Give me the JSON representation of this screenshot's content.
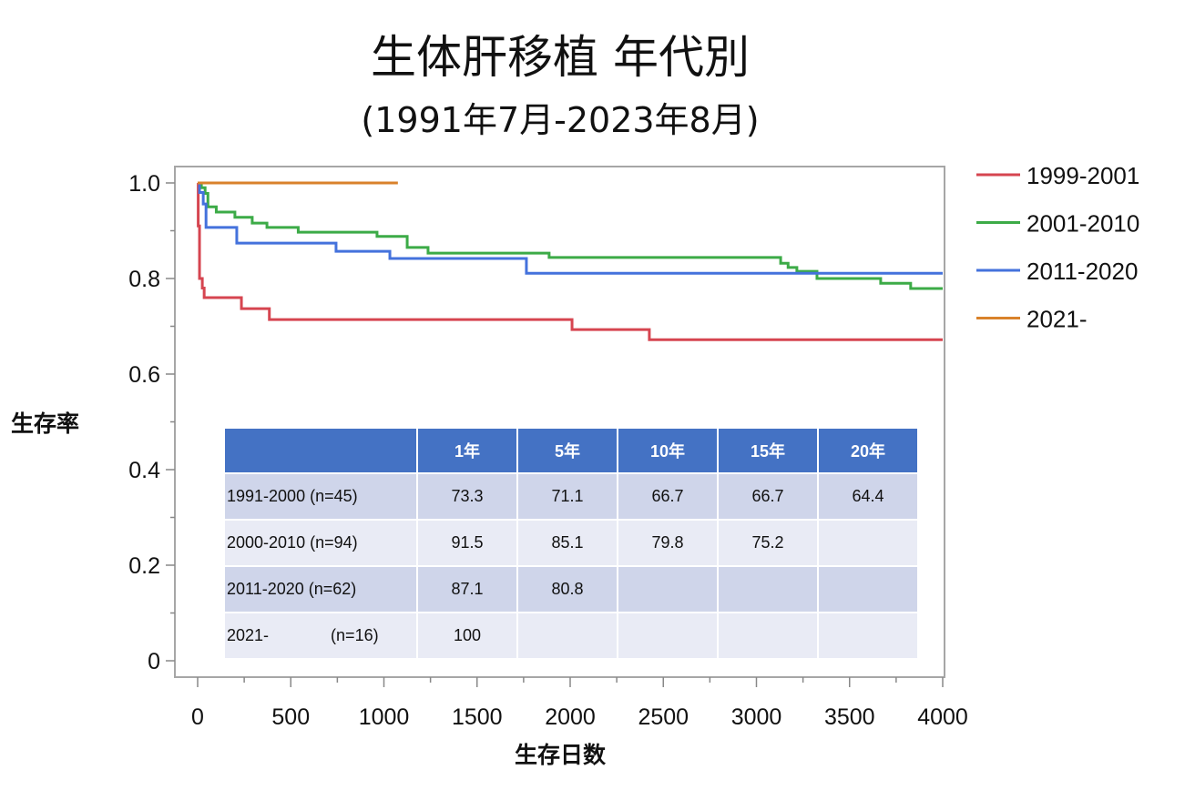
{
  "chart_data": {
    "type": "line",
    "subtype": "kaplan-meier-step",
    "title": "生体肝移植 年代別",
    "subtitle": "(1991年7月-2023年8月)",
    "xlabel": "生存日数",
    "ylabel": "生存率",
    "xlim": [
      0,
      4000
    ],
    "ylim": [
      0,
      1.0
    ],
    "xticks": [
      "0",
      "500",
      "1000",
      "1500",
      "2000",
      "2500",
      "3000",
      "3500",
      "4000"
    ],
    "xtick_values": [
      0,
      500,
      1000,
      1500,
      2000,
      2500,
      3000,
      3500,
      4000
    ],
    "yticks": [
      "0",
      "0.2",
      "0.4",
      "0.6",
      "0.8",
      "1.0"
    ],
    "ytick_values": [
      0,
      0.2,
      0.4,
      0.6,
      0.8,
      1.0
    ],
    "grid": false,
    "legend_position": "right",
    "series": [
      {
        "name": "1999-2001",
        "color": "#d64550",
        "x": [
          0,
          3,
          10,
          25,
          35,
          235,
          385,
          2010,
          2425,
          4000
        ],
        "y": [
          1.0,
          0.91,
          0.8,
          0.78,
          0.76,
          0.737,
          0.714,
          0.693,
          0.672,
          0.672
        ]
      },
      {
        "name": "2001-2010",
        "color": "#3cab47",
        "x": [
          0,
          20,
          40,
          55,
          100,
          200,
          293,
          372,
          540,
          963,
          1125,
          1237,
          1887,
          3130,
          3170,
          3217,
          3325,
          3667,
          3828,
          4000
        ],
        "y": [
          1.0,
          0.99,
          0.978,
          0.95,
          0.939,
          0.928,
          0.916,
          0.907,
          0.897,
          0.888,
          0.865,
          0.853,
          0.844,
          0.832,
          0.823,
          0.815,
          0.8,
          0.79,
          0.779,
          0.779
        ]
      },
      {
        "name": "2011-2020",
        "color": "#4472dc",
        "x": [
          0,
          10,
          30,
          45,
          210,
          743,
          1032,
          1765,
          4000
        ],
        "y": [
          1.0,
          0.98,
          0.956,
          0.907,
          0.874,
          0.857,
          0.842,
          0.811,
          0.811
        ]
      },
      {
        "name": "2021-",
        "color": "#d9822b",
        "x": [
          0,
          1075
        ],
        "y": [
          1.0,
          1.0
        ]
      }
    ]
  },
  "table": {
    "headers": [
      "",
      "1年",
      "5年",
      "10年",
      "15年",
      "20年"
    ],
    "rows": [
      {
        "group": "1991-2000",
        "n": "(n=45)",
        "values": [
          "73.3",
          "71.1",
          "66.7",
          "66.7",
          "64.4"
        ]
      },
      {
        "group": "2000-2010",
        "n": "(n=94)",
        "values": [
          "91.5",
          "85.1",
          "79.8",
          "75.2",
          ""
        ]
      },
      {
        "group": "2011-2020",
        "n": "(n=62)",
        "values": [
          "87.1",
          "80.8",
          "",
          "",
          ""
        ]
      },
      {
        "group": "2021-",
        "n": "(n=16)",
        "values": [
          "100",
          "",
          "",
          "",
          ""
        ]
      }
    ]
  }
}
